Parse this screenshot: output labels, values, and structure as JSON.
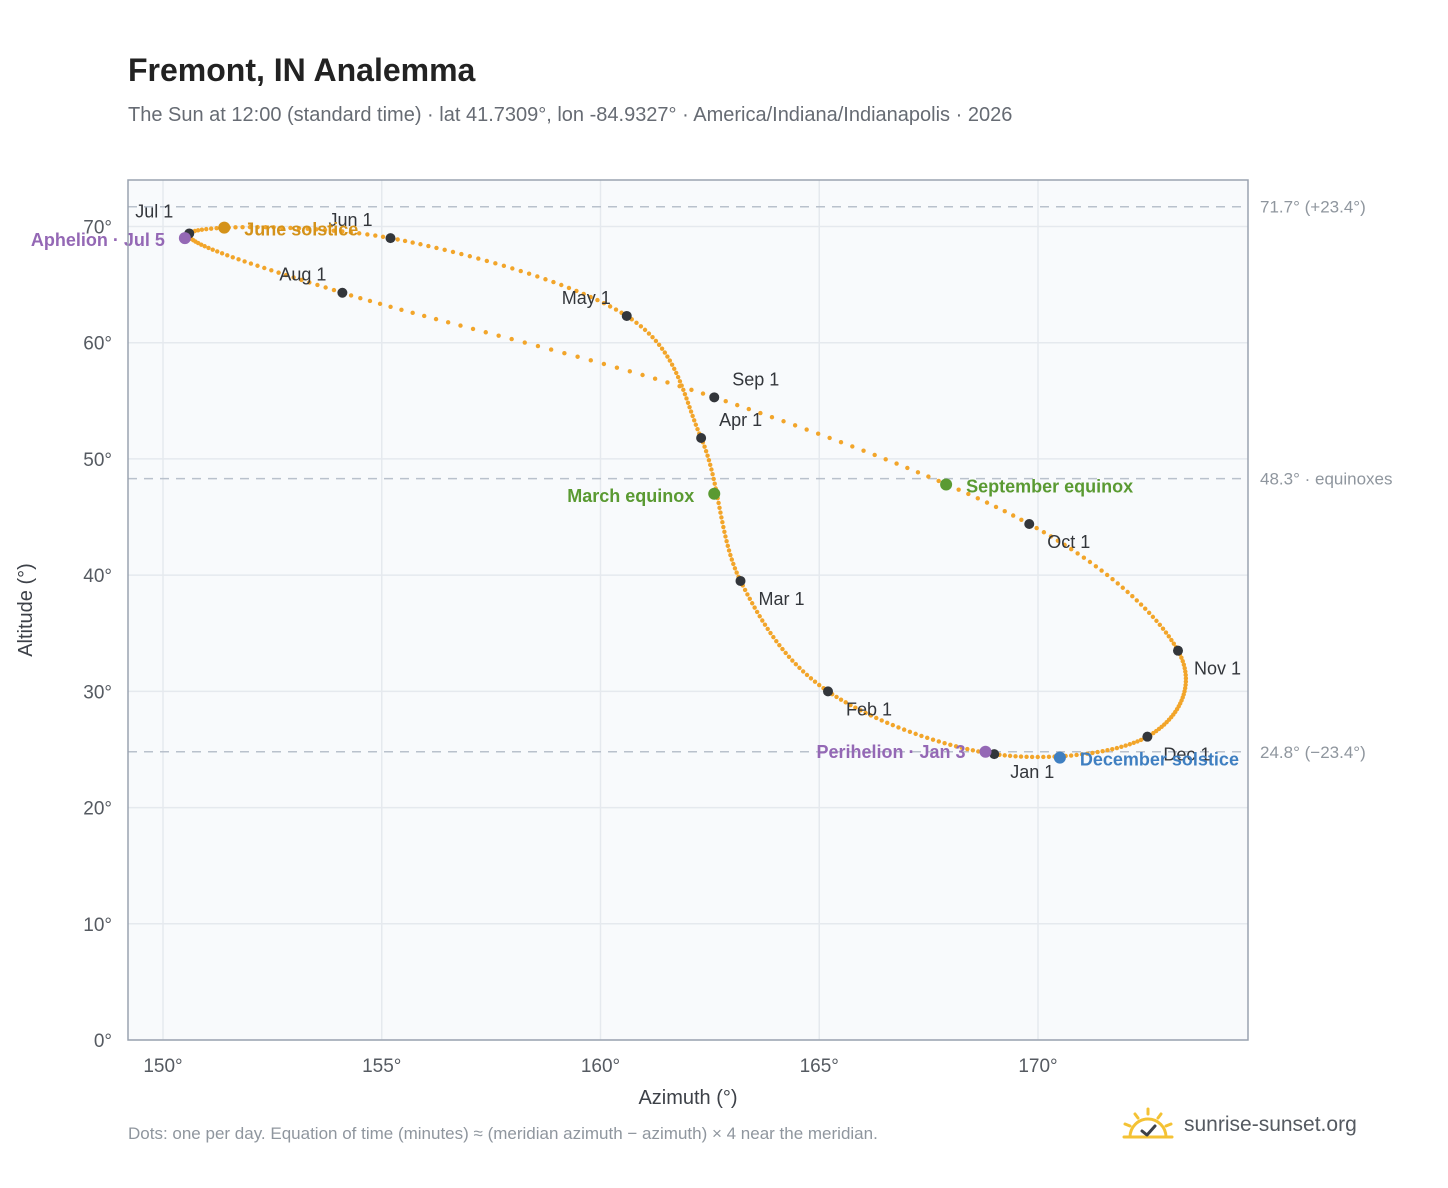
{
  "header": {
    "title": "Fremont, IN Analemma",
    "subtitle": "The Sun at 12:00 (standard time) · lat 41.7309°, lon -84.9327° · America/Indiana/Indianapolis · 2026"
  },
  "footer": {
    "note": "Dots: one per day. Equation of time (minutes) ≈ (meridian azimuth − azimuth) × 4 near the meridian.",
    "brand": "sunrise-sunset.org"
  },
  "colors": {
    "curve": "#f2a52a",
    "month_marker": "#33363b",
    "solstice_june": "#d4921a",
    "solstice_december": "#3f7fc1",
    "equinox": "#5a9a32",
    "apsis": "#9468b5",
    "plot_bg": "#f8fafc",
    "grid": "#e5e9ee",
    "reference_line": "#b9c1cc",
    "axis_border": "#9aa3b0",
    "logo_sun": "#f4c234"
  },
  "chart_data": {
    "type": "scatter",
    "title": "Fremont, IN Analemma",
    "xlabel": "Azimuth (°)",
    "ylabel": "Altitude (°)",
    "xlim": [
      149.2,
      174.8
    ],
    "ylim": [
      0,
      74
    ],
    "x_ticks": [
      150,
      155,
      160,
      165,
      170
    ],
    "x_tick_labels": [
      "150°",
      "155°",
      "160°",
      "165°",
      "170°"
    ],
    "y_ticks": [
      0,
      10,
      20,
      30,
      40,
      50,
      60,
      70
    ],
    "y_tick_labels": [
      "0°",
      "10°",
      "20°",
      "30°",
      "40°",
      "50°",
      "60°",
      "70°"
    ],
    "grid": true,
    "reference_lines": [
      {
        "y": 71.7,
        "label": "71.7° (+23.4°)"
      },
      {
        "y": 48.3,
        "label": "48.3° · equinoxes"
      },
      {
        "y": 24.8,
        "label": "24.8° (−23.4°)"
      }
    ],
    "monthly_points": [
      {
        "label": "Jan 1",
        "x": 169.0,
        "y": 24.6
      },
      {
        "label": "Feb 1",
        "x": 165.2,
        "y": 30.0
      },
      {
        "label": "Mar 1",
        "x": 163.2,
        "y": 39.5
      },
      {
        "label": "Apr 1",
        "x": 162.3,
        "y": 51.8
      },
      {
        "label": "May 1",
        "x": 160.6,
        "y": 62.3
      },
      {
        "label": "Jun 1",
        "x": 155.2,
        "y": 69.0
      },
      {
        "label": "Jul 1",
        "x": 150.6,
        "y": 69.4
      },
      {
        "label": "Aug 1",
        "x": 154.1,
        "y": 64.3
      },
      {
        "label": "Sep 1",
        "x": 162.6,
        "y": 55.3
      },
      {
        "label": "Oct 1",
        "x": 169.8,
        "y": 44.4
      },
      {
        "label": "Nov 1",
        "x": 173.2,
        "y": 33.5
      },
      {
        "label": "Dec 1",
        "x": 172.5,
        "y": 26.1
      }
    ],
    "events": [
      {
        "label": "June solstice",
        "x": 151.4,
        "y": 69.9,
        "color": "#d4921a"
      },
      {
        "label": "Aphelion · Jul 5",
        "x": 150.5,
        "y": 69.0,
        "color": "#9468b5"
      },
      {
        "label": "March equinox",
        "x": 162.6,
        "y": 47.0,
        "color": "#5a9a32"
      },
      {
        "label": "September equinox",
        "x": 167.9,
        "y": 47.8,
        "color": "#5a9a32"
      },
      {
        "label": "Perihelion · Jan 3",
        "x": 168.8,
        "y": 24.8,
        "color": "#9468b5"
      },
      {
        "label": "December solstice",
        "x": 170.5,
        "y": 24.3,
        "color": "#3f7fc1"
      }
    ]
  }
}
